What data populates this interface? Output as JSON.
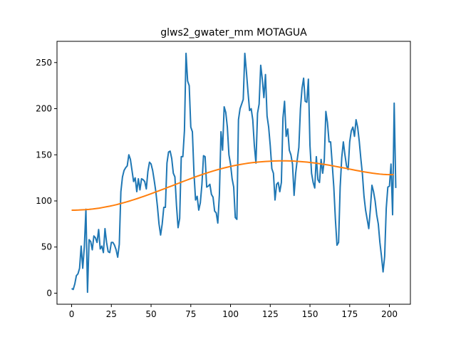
{
  "chart_data": {
    "type": "line",
    "title": "glws2_gwater_mm MOTAGUA",
    "xlabel": "",
    "ylabel": "",
    "xlim": [
      -9.2,
      213.2
    ],
    "ylim": [
      -12,
      273
    ],
    "xticks": [
      0,
      25,
      50,
      75,
      100,
      125,
      150,
      175,
      200
    ],
    "yticks": [
      0,
      50,
      100,
      150,
      200,
      250
    ],
    "grid": false,
    "colors": {
      "series1": "#1f77b4",
      "series2": "#ff7f0e"
    },
    "series": [
      {
        "values": [
          5,
          4,
          10,
          19,
          21,
          27,
          51,
          27,
          50,
          91,
          1,
          58,
          56,
          47,
          62,
          60,
          55,
          69,
          48,
          51,
          44,
          70,
          55,
          45,
          44,
          55,
          55,
          52,
          47,
          39,
          53,
          110,
          126,
          133,
          136,
          138,
          150,
          145,
          133,
          121,
          125,
          110,
          124,
          112,
          124,
          123,
          121,
          113,
          132,
          142,
          140,
          133,
          122,
          110,
          94,
          75,
          63,
          75,
          93,
          93,
          141,
          153,
          154,
          146,
          130,
          126,
          95,
          71,
          81,
          148,
          148,
          176,
          260,
          230,
          225,
          180,
          175,
          130,
          101,
          105,
          90,
          98,
          118,
          149,
          148,
          115,
          116,
          118,
          107,
          104,
          89,
          87,
          76,
          107,
          175,
          155,
          202,
          196,
          180,
          150,
          140,
          124,
          115,
          82,
          80,
          188,
          200,
          205,
          210,
          260,
          240,
          218,
          198,
          200,
          188,
          160,
          141,
          195,
          205,
          247,
          232,
          212,
          237,
          192,
          180,
          160,
          135,
          130,
          101,
          118,
          120,
          110,
          120,
          190,
          208,
          170,
          178,
          155,
          150,
          140,
          106,
          130,
          145,
          158,
          200,
          222,
          233,
          208,
          207,
          232,
          160,
          130,
          120,
          114,
          148,
          123,
          120,
          145,
          130,
          144,
          197,
          185,
          164,
          164,
          140,
          115,
          80,
          52,
          55,
          115,
          147,
          164,
          150,
          138,
          134,
          164,
          176,
          180,
          170,
          188,
          180,
          165,
          146,
          129,
          105,
          90,
          80,
          70,
          91,
          117,
          110,
          100,
          85,
          75,
          55,
          40,
          23,
          40,
          92,
          115,
          116,
          140,
          85,
          206,
          114
        ]
      },
      {
        "values": [
          90,
          90,
          90.1,
          90.3,
          90.5,
          90.8,
          91.2,
          91.7,
          92.2,
          92.9,
          93.6,
          94.3,
          95.1,
          96,
          97,
          98,
          99.1,
          100.2,
          101.4,
          102.6,
          103.9,
          105.2,
          106.5,
          107.9,
          109.3,
          110.7,
          112.1,
          113.5,
          115,
          116.4,
          117.9,
          119.3,
          120.8,
          122.2,
          123.6,
          125,
          126.4,
          127.7,
          129,
          130.2,
          131.4,
          132.6,
          133.7,
          134.7,
          135.7,
          136.6,
          137.5,
          138.3,
          139,
          139.7,
          140.3,
          140.9,
          141.4,
          141.8,
          142.2,
          142.5,
          142.8,
          143,
          143.2,
          143.3,
          143.4,
          143.4,
          143.4,
          143.3,
          143.2,
          143,
          142.7,
          142.4,
          142.1,
          141.6,
          141.2,
          140.7,
          140.1,
          139.6,
          139,
          138.3,
          137.6,
          136.9,
          136.2,
          135.5,
          134.7,
          134,
          133.2,
          132.5,
          131.8,
          131.2,
          130.6,
          130,
          129.5,
          129.1,
          128.8,
          128.6,
          128.5,
          128.5
        ],
        "x_step": 2.1789
      }
    ]
  }
}
